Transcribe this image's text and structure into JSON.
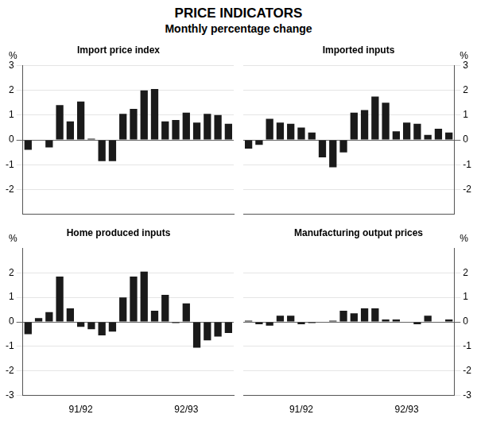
{
  "title": "PRICE INDICATORS",
  "subtitle": "Monthly percentage change",
  "chart_data": [
    {
      "type": "bar",
      "title": "Import price index",
      "ylabel": "%",
      "values": [
        -0.4,
        0.0,
        -0.3,
        1.4,
        0.75,
        1.55,
        0.05,
        -0.85,
        -0.85,
        1.05,
        1.25,
        2.0,
        2.05,
        0.75,
        0.8,
        1.1,
        0.7,
        1.05,
        1.0,
        0.65
      ],
      "color": "#1a1a1a",
      "ylim": [
        -3,
        3
      ],
      "yticks": [
        -2,
        -1,
        0,
        1,
        2,
        3
      ],
      "grid": true,
      "tick_labels": "y"
    },
    {
      "type": "bar",
      "title": "Imported inputs",
      "ylabel": "%",
      "values": [
        -0.35,
        -0.2,
        0.85,
        0.7,
        0.65,
        0.5,
        0.3,
        -0.7,
        -1.1,
        -0.5,
        1.1,
        1.2,
        1.75,
        1.5,
        0.35,
        0.7,
        0.65,
        0.2,
        0.45,
        0.3
      ],
      "color": "#1a1a1a",
      "ylim": [
        -3,
        3
      ],
      "yticks": [
        -2,
        -1,
        0,
        1,
        2,
        3
      ],
      "grid": true,
      "tick_labels": "y"
    },
    {
      "type": "bar",
      "title": "Home produced inputs",
      "ylabel": "%",
      "categories": [
        null,
        null,
        null,
        null,
        null,
        "91/92",
        null,
        null,
        null,
        null,
        null,
        null,
        null,
        null,
        null,
        "92/93",
        null,
        null,
        null,
        null
      ],
      "values": [
        -0.5,
        0.15,
        0.4,
        1.85,
        0.55,
        -0.2,
        -0.3,
        -0.55,
        -0.4,
        1.0,
        1.85,
        2.05,
        0.45,
        1.1,
        -0.05,
        0.75,
        -1.05,
        -0.75,
        -0.6,
        -0.45
      ],
      "color": "#1a1a1a",
      "ylim": [
        -3,
        3
      ],
      "yticks": [
        -3,
        -2,
        -1,
        0,
        1,
        2
      ],
      "grid": true
    },
    {
      "type": "bar",
      "title": "Manufacturing output prices",
      "ylabel": "%",
      "categories": [
        null,
        null,
        null,
        null,
        null,
        "91/92",
        null,
        null,
        null,
        null,
        null,
        null,
        null,
        null,
        null,
        "92/93",
        null,
        null,
        null,
        null
      ],
      "values": [
        0.05,
        -0.1,
        -0.15,
        0.25,
        0.25,
        -0.1,
        -0.05,
        0.0,
        0.05,
        0.45,
        0.35,
        0.55,
        0.55,
        0.1,
        0.1,
        0.0,
        -0.1,
        0.25,
        0.0,
        0.1
      ],
      "color": "#1a1a1a",
      "ylim": [
        -3,
        3
      ],
      "yticks": [
        -3,
        -2,
        -1,
        0,
        1,
        2
      ],
      "grid": true
    }
  ]
}
